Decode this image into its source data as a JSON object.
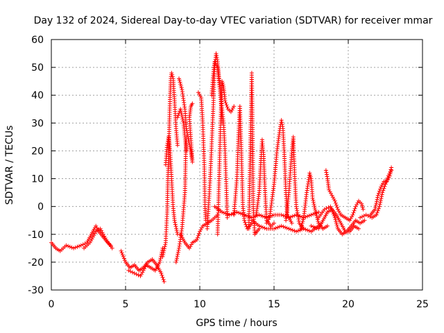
{
  "chart_data": {
    "type": "scatter",
    "title": "Day 132 of 2024, Sidereal Day-to-day VTEC variation (SDTVAR) for receiver mmar",
    "xlabel": "GPS time / hours",
    "ylabel": "SDTVAR / TECUs",
    "xlim": [
      0,
      25
    ],
    "ylim": [
      -30,
      60
    ],
    "xticks": [
      "0",
      "5",
      "10",
      "15",
      "20",
      "25"
    ],
    "yticks": [
      "-30",
      "-20",
      "-10",
      "0",
      "10",
      "20",
      "30",
      "40",
      "50",
      "60"
    ],
    "grid": true,
    "marker": "+",
    "series": [
      {
        "name": "SDTVAR",
        "color": "#ff0000",
        "tracks": [
          [
            [
              0,
              -13
            ],
            [
              0.3,
              -15
            ],
            [
              0.6,
              -16
            ],
            [
              1.0,
              -14
            ],
            [
              1.5,
              -15
            ],
            [
              2.0,
              -14
            ],
            [
              2.4,
              -13
            ],
            [
              2.7,
              -10
            ],
            [
              3.0,
              -7
            ],
            [
              3.2,
              -9
            ],
            [
              3.5,
              -11
            ],
            [
              3.8,
              -13
            ],
            [
              4.0,
              -14
            ]
          ],
          [
            [
              2.2,
              -15
            ],
            [
              2.6,
              -13
            ],
            [
              3.0,
              -9
            ],
            [
              3.3,
              -8
            ],
            [
              3.7,
              -12
            ],
            [
              4.1,
              -15
            ]
          ],
          [
            [
              4.7,
              -16
            ],
            [
              5.0,
              -20
            ],
            [
              5.3,
              -22
            ],
            [
              5.6,
              -21
            ],
            [
              5.9,
              -23
            ],
            [
              6.2,
              -22
            ],
            [
              6.5,
              -20
            ],
            [
              6.8,
              -19
            ],
            [
              7.1,
              -21
            ],
            [
              7.4,
              -24
            ],
            [
              7.6,
              -27
            ]
          ],
          [
            [
              5.2,
              -23
            ],
            [
              5.6,
              -24
            ],
            [
              6.0,
              -25
            ],
            [
              6.4,
              -21
            ],
            [
              6.7,
              -22
            ],
            [
              7.0,
              -23
            ],
            [
              7.3,
              -20
            ],
            [
              7.5,
              -15
            ]
          ],
          [
            [
              7.5,
              -18
            ],
            [
              7.7,
              -13
            ],
            [
              7.8,
              -2
            ],
            [
              7.85,
              10
            ],
            [
              7.9,
              18
            ],
            [
              7.95,
              30
            ],
            [
              8.0,
              40
            ],
            [
              8.05,
              46
            ],
            [
              8.1,
              48
            ],
            [
              8.2,
              46
            ],
            [
              8.3,
              38
            ],
            [
              8.4,
              28
            ],
            [
              8.5,
              22
            ]
          ],
          [
            [
              7.7,
              15
            ],
            [
              7.8,
              22
            ],
            [
              7.9,
              25
            ],
            [
              8.0,
              20
            ],
            [
              8.1,
              10
            ],
            [
              8.2,
              0
            ],
            [
              8.3,
              -5
            ],
            [
              8.5,
              -10
            ]
          ],
          [
            [
              8.4,
              -20
            ],
            [
              8.6,
              -15
            ],
            [
              8.8,
              -8
            ],
            [
              9.0,
              5
            ],
            [
              9.05,
              18
            ],
            [
              9.1,
              25
            ]
          ],
          [
            [
              8.6,
              46
            ],
            [
              8.8,
              42
            ],
            [
              9.0,
              35
            ],
            [
              9.1,
              28
            ],
            [
              9.2,
              25
            ],
            [
              9.4,
              20
            ],
            [
              9.5,
              16
            ],
            [
              9.3,
              32
            ],
            [
              9.4,
              36
            ],
            [
              9.5,
              37
            ]
          ],
          [
            [
              8.5,
              32
            ],
            [
              8.7,
              35
            ],
            [
              8.9,
              30
            ],
            [
              9.0,
              25
            ],
            [
              9.1,
              20
            ]
          ],
          [
            [
              8.7,
              -10
            ],
            [
              9.0,
              -13
            ],
            [
              9.3,
              -15
            ],
            [
              9.5,
              -13
            ],
            [
              9.8,
              -12
            ],
            [
              10.0,
              -9
            ],
            [
              10.2,
              -7
            ],
            [
              10.5,
              -6
            ],
            [
              10.8,
              -5
            ],
            [
              11.0,
              -4
            ],
            [
              11.2,
              -3
            ]
          ],
          [
            [
              9.9,
              41
            ],
            [
              10.1,
              39
            ],
            [
              10.2,
              30
            ],
            [
              10.3,
              15
            ],
            [
              10.35,
              0
            ],
            [
              10.4,
              -5
            ]
          ],
          [
            [
              10.5,
              -8
            ],
            [
              10.7,
              10
            ],
            [
              10.9,
              35
            ],
            [
              11.0,
              50
            ],
            [
              11.1,
              55
            ],
            [
              11.2,
              52
            ],
            [
              11.3,
              46
            ],
            [
              11.4,
              40
            ],
            [
              11.5,
              30
            ]
          ],
          [
            [
              10.8,
              40
            ],
            [
              10.9,
              47
            ],
            [
              11.0,
              52
            ],
            [
              11.2,
              50
            ],
            [
              11.4,
              40
            ],
            [
              11.6,
              30
            ],
            [
              11.7,
              20
            ],
            [
              11.8,
              5
            ],
            [
              11.85,
              -4
            ]
          ],
          [
            [
              11.2,
              -10
            ],
            [
              11.3,
              10
            ],
            [
              11.4,
              30
            ],
            [
              11.5,
              45
            ],
            [
              11.6,
              43
            ],
            [
              11.7,
              38
            ],
            [
              11.9,
              35
            ],
            [
              12.1,
              34
            ],
            [
              12.3,
              36
            ]
          ],
          [
            [
              11.0,
              0
            ],
            [
              11.5,
              -2
            ],
            [
              12.0,
              -3
            ],
            [
              12.5,
              -2
            ],
            [
              13.0,
              -3
            ],
            [
              13.5,
              -4
            ],
            [
              14.0,
              -3
            ],
            [
              14.5,
              -4
            ],
            [
              15.0,
              -3
            ],
            [
              15.5,
              -3
            ],
            [
              16.0,
              -4
            ],
            [
              16.5,
              -3
            ],
            [
              17.0,
              -4
            ],
            [
              17.5,
              -3
            ],
            [
              18.0,
              -2
            ]
          ],
          [
            [
              12.3,
              -3
            ],
            [
              12.5,
              10
            ],
            [
              12.6,
              25
            ],
            [
              12.7,
              36
            ],
            [
              12.8,
              20
            ],
            [
              12.9,
              0
            ],
            [
              13.0,
              -5
            ],
            [
              13.2,
              -8
            ],
            [
              13.5,
              -6
            ]
          ],
          [
            [
              13.3,
              -8
            ],
            [
              13.4,
              20
            ],
            [
              13.5,
              48
            ],
            [
              13.55,
              30
            ],
            [
              13.6,
              0
            ],
            [
              13.7,
              -10
            ],
            [
              14.0,
              -8
            ]
          ],
          [
            [
              13.5,
              -5
            ],
            [
              14.0,
              -7
            ],
            [
              14.5,
              -8
            ],
            [
              15.0,
              -8
            ],
            [
              15.5,
              -7
            ],
            [
              16.0,
              -8
            ],
            [
              16.5,
              -9
            ],
            [
              17.0,
              -8
            ],
            [
              17.5,
              -9
            ],
            [
              18.0,
              -7
            ]
          ],
          [
            [
              13.8,
              -3
            ],
            [
              14.0,
              5
            ],
            [
              14.1,
              15
            ],
            [
              14.2,
              24
            ],
            [
              14.3,
              18
            ],
            [
              14.4,
              5
            ],
            [
              14.5,
              -5
            ],
            [
              14.8,
              -7
            ],
            [
              15.0,
              -6
            ]
          ],
          [
            [
              14.5,
              -6
            ],
            [
              14.7,
              -4
            ],
            [
              15.0,
              8
            ],
            [
              15.2,
              20
            ],
            [
              15.4,
              28
            ],
            [
              15.5,
              31
            ],
            [
              15.6,
              28
            ],
            [
              15.7,
              18
            ],
            [
              15.8,
              5
            ],
            [
              15.9,
              -3
            ],
            [
              16.2,
              -6
            ]
          ],
          [
            [
              15.8,
              -5
            ],
            [
              16.0,
              5
            ],
            [
              16.2,
              20
            ],
            [
              16.3,
              25
            ],
            [
              16.4,
              10
            ],
            [
              16.5,
              0
            ],
            [
              16.7,
              -6
            ],
            [
              17.0,
              -8
            ]
          ],
          [
            [
              16.8,
              -8
            ],
            [
              17.0,
              -4
            ],
            [
              17.2,
              5
            ],
            [
              17.4,
              12
            ],
            [
              17.5,
              10
            ],
            [
              17.6,
              3
            ],
            [
              17.8,
              -2
            ],
            [
              18.0,
              -6
            ],
            [
              18.3,
              -8
            ],
            [
              18.6,
              -7
            ]
          ],
          [
            [
              17.5,
              -7
            ],
            [
              18.0,
              -8
            ],
            [
              18.3,
              -5
            ],
            [
              18.6,
              -2
            ],
            [
              18.9,
              -1
            ],
            [
              19.2,
              -3
            ],
            [
              19.5,
              -6
            ],
            [
              19.8,
              -9
            ],
            [
              20.1,
              -9
            ],
            [
              20.4,
              -7
            ],
            [
              20.7,
              -8
            ]
          ],
          [
            [
              18.0,
              -4
            ],
            [
              18.4,
              -1
            ],
            [
              18.8,
              0
            ],
            [
              19.1,
              -4
            ],
            [
              19.3,
              -8
            ],
            [
              19.6,
              -10
            ],
            [
              19.9,
              -9
            ],
            [
              20.2,
              -7
            ],
            [
              20.5,
              -5
            ],
            [
              20.8,
              -6
            ],
            [
              21.1,
              -5
            ]
          ],
          [
            [
              18.5,
              13
            ],
            [
              18.6,
              10
            ],
            [
              18.7,
              6
            ],
            [
              18.9,
              4
            ],
            [
              19.1,
              2
            ],
            [
              19.3,
              -1
            ],
            [
              19.5,
              -3
            ],
            [
              19.8,
              -4
            ],
            [
              20.1,
              -5
            ],
            [
              20.3,
              -3
            ],
            [
              20.5,
              0
            ],
            [
              20.7,
              2
            ],
            [
              20.9,
              1
            ],
            [
              21.0,
              -1
            ]
          ],
          [
            [
              20.8,
              -4
            ],
            [
              21.2,
              -3
            ],
            [
              21.6,
              -4
            ],
            [
              21.9,
              -3
            ],
            [
              22.1,
              0
            ],
            [
              22.3,
              5
            ],
            [
              22.5,
              8
            ],
            [
              22.7,
              11
            ],
            [
              22.9,
              13
            ]
          ],
          [
            [
              21.5,
              -3
            ],
            [
              21.8,
              -1
            ],
            [
              22.0,
              4
            ],
            [
              22.2,
              7
            ],
            [
              22.4,
              9
            ],
            [
              22.6,
              9
            ],
            [
              22.8,
              11
            ],
            [
              22.9,
              14
            ]
          ]
        ]
      }
    ]
  }
}
